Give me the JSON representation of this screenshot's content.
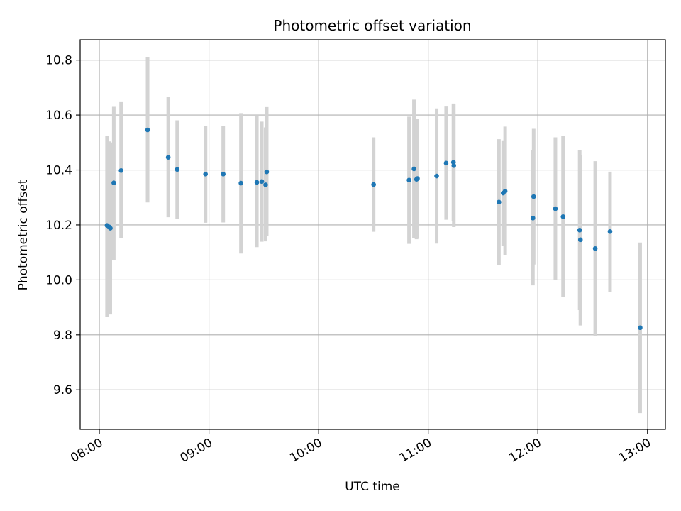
{
  "chart_data": {
    "type": "scatter",
    "title": "Photometric offset variation",
    "xlabel": "UTC time",
    "ylabel": "Photometric offset",
    "x_ticks": [
      "08:00",
      "09:00",
      "10:00",
      "11:00",
      "12:00",
      "13:00"
    ],
    "x_tick_values": [
      480,
      540,
      600,
      660,
      720,
      780
    ],
    "y_ticks": [
      "9.6",
      "9.8",
      "10.0",
      "10.2",
      "10.4",
      "10.6",
      "10.8"
    ],
    "y_tick_values": [
      9.6,
      9.8,
      10.0,
      10.2,
      10.4,
      10.6,
      10.8
    ],
    "x_unit": "minutes after 00:00 UTC",
    "xlim": [
      469.5,
      789.8
    ],
    "ylim": [
      9.456,
      10.874
    ],
    "grid": true,
    "colors": {
      "point": "#1f77b4",
      "errorbar": "#d3d3d3",
      "grid": "#b0b0b0"
    },
    "points": [
      {
        "x": 484.2,
        "y": 10.198,
        "err_low": 9.866,
        "err_high": 10.525
      },
      {
        "x": 485.4,
        "y": 10.193,
        "err_low": 9.876,
        "err_high": 10.504
      },
      {
        "x": 486.0,
        "y": 10.188,
        "err_low": 9.874,
        "err_high": 10.5
      },
      {
        "x": 487.9,
        "y": 10.353,
        "err_low": 10.072,
        "err_high": 10.63
      },
      {
        "x": 491.9,
        "y": 10.398,
        "err_low": 10.152,
        "err_high": 10.647
      },
      {
        "x": 506.4,
        "y": 10.546,
        "err_low": 10.282,
        "err_high": 10.81
      },
      {
        "x": 517.7,
        "y": 10.446,
        "err_low": 10.228,
        "err_high": 10.665
      },
      {
        "x": 522.6,
        "y": 10.402,
        "err_low": 10.223,
        "err_high": 10.581
      },
      {
        "x": 538.1,
        "y": 10.385,
        "err_low": 10.208,
        "err_high": 10.561
      },
      {
        "x": 547.8,
        "y": 10.385,
        "err_low": 10.209,
        "err_high": 10.561
      },
      {
        "x": 557.5,
        "y": 10.352,
        "err_low": 10.096,
        "err_high": 10.607
      },
      {
        "x": 566.2,
        "y": 10.355,
        "err_low": 10.119,
        "err_high": 10.595
      },
      {
        "x": 568.9,
        "y": 10.358,
        "err_low": 10.139,
        "err_high": 10.576
      },
      {
        "x": 571.0,
        "y": 10.346,
        "err_low": 10.14,
        "err_high": 10.555
      },
      {
        "x": 571.6,
        "y": 10.393,
        "err_low": 10.159,
        "err_high": 10.629
      },
      {
        "x": 630.1,
        "y": 10.347,
        "err_low": 10.175,
        "err_high": 10.519
      },
      {
        "x": 649.5,
        "y": 10.363,
        "err_low": 10.131,
        "err_high": 10.594
      },
      {
        "x": 652.2,
        "y": 10.404,
        "err_low": 10.153,
        "err_high": 10.656
      },
      {
        "x": 653.6,
        "y": 10.366,
        "err_low": 10.148,
        "err_high": 10.585
      },
      {
        "x": 654.1,
        "y": 10.369,
        "err_low": 10.152,
        "err_high": 10.585
      },
      {
        "x": 664.6,
        "y": 10.378,
        "err_low": 10.132,
        "err_high": 10.624
      },
      {
        "x": 669.8,
        "y": 10.425,
        "err_low": 10.219,
        "err_high": 10.631
      },
      {
        "x": 673.8,
        "y": 10.428,
        "err_low": 10.215,
        "err_high": 10.642
      },
      {
        "x": 674.0,
        "y": 10.416,
        "err_low": 10.192,
        "err_high": 10.64
      },
      {
        "x": 698.7,
        "y": 10.283,
        "err_low": 10.055,
        "err_high": 10.512
      },
      {
        "x": 701.0,
        "y": 10.316,
        "err_low": 10.124,
        "err_high": 10.508
      },
      {
        "x": 702.1,
        "y": 10.323,
        "err_low": 10.091,
        "err_high": 10.558
      },
      {
        "x": 717.3,
        "y": 10.225,
        "err_low": 9.98,
        "err_high": 10.471
      },
      {
        "x": 717.7,
        "y": 10.303,
        "err_low": 10.056,
        "err_high": 10.55
      },
      {
        "x": 729.6,
        "y": 10.259,
        "err_low": 10.0,
        "err_high": 10.519
      },
      {
        "x": 733.8,
        "y": 10.23,
        "err_low": 9.938,
        "err_high": 10.523
      },
      {
        "x": 742.9,
        "y": 10.181,
        "err_low": 9.89,
        "err_high": 10.471
      },
      {
        "x": 743.3,
        "y": 10.146,
        "err_low": 9.834,
        "err_high": 10.455
      },
      {
        "x": 751.4,
        "y": 10.114,
        "err_low": 9.797,
        "err_high": 10.432
      },
      {
        "x": 759.5,
        "y": 10.176,
        "err_low": 9.955,
        "err_high": 10.394
      },
      {
        "x": 776.0,
        "y": 9.826,
        "err_low": 9.515,
        "err_high": 10.136
      }
    ]
  }
}
